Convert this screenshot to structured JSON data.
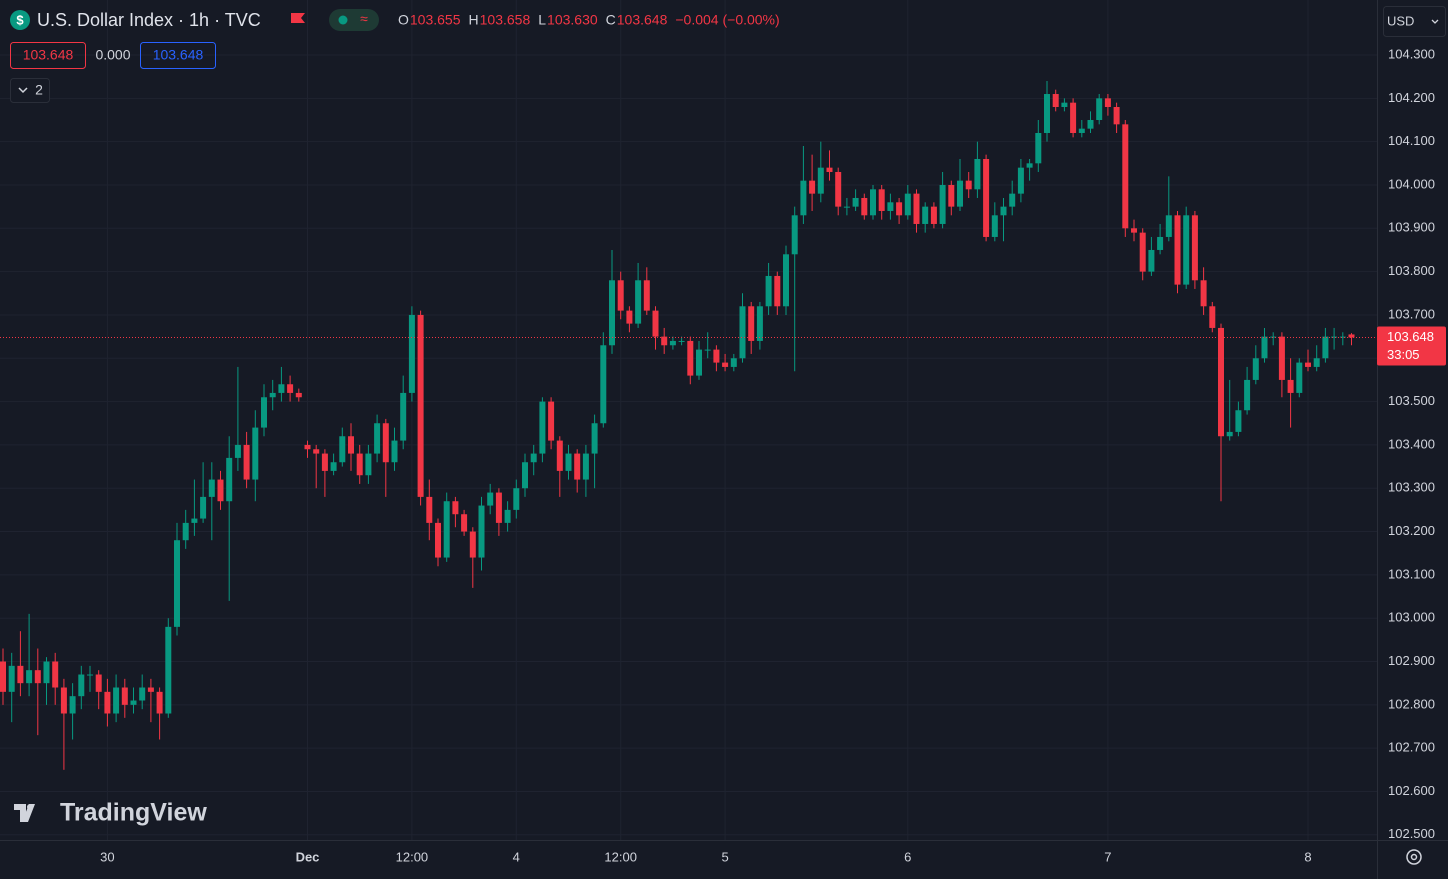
{
  "chart_data": {
    "type": "candlestick",
    "up_color": "#089981",
    "down_color": "#f23645",
    "grid": true,
    "ylim": [
      102.488,
      104.427
    ],
    "yticks": [
      {
        "value": 102.5,
        "label": "102.500"
      },
      {
        "value": 102.6,
        "label": "102.600"
      },
      {
        "value": 102.7,
        "label": "102.700"
      },
      {
        "value": 102.8,
        "label": "102.800"
      },
      {
        "value": 102.9,
        "label": "102.900"
      },
      {
        "value": 103.0,
        "label": "103.000"
      },
      {
        "value": 103.1,
        "label": "103.100"
      },
      {
        "value": 103.2,
        "label": "103.200"
      },
      {
        "value": 103.3,
        "label": "103.300"
      },
      {
        "value": 103.4,
        "label": "103.400"
      },
      {
        "value": 103.5,
        "label": "103.500"
      },
      {
        "value": 103.6,
        "label": "103.600"
      },
      {
        "value": 103.7,
        "label": "103.700"
      },
      {
        "value": 103.8,
        "label": "103.800"
      },
      {
        "value": 103.9,
        "label": "103.900"
      },
      {
        "value": 104.0,
        "label": "104.000"
      },
      {
        "value": 104.1,
        "label": "104.100"
      },
      {
        "value": 104.2,
        "label": "104.200"
      },
      {
        "value": 104.3,
        "label": "104.300"
      }
    ],
    "categories": [
      null,
      null,
      null,
      null,
      null,
      null,
      null,
      null,
      null,
      null,
      null,
      null,
      "30",
      null,
      null,
      null,
      null,
      null,
      null,
      null,
      null,
      null,
      null,
      null,
      null,
      null,
      null,
      null,
      null,
      null,
      null,
      null,
      null,
      null,
      null,
      "Dec",
      null,
      null,
      null,
      null,
      null,
      null,
      null,
      null,
      null,
      null,
      null,
      "12:00",
      null,
      null,
      null,
      null,
      null,
      null,
      null,
      null,
      null,
      null,
      null,
      "4",
      null,
      null,
      null,
      null,
      null,
      null,
      null,
      null,
      null,
      null,
      null,
      "12:00",
      null,
      null,
      null,
      null,
      null,
      null,
      null,
      null,
      null,
      null,
      null,
      "5",
      null,
      null,
      null,
      null,
      null,
      null,
      null,
      null,
      null,
      null,
      null,
      null,
      null,
      null,
      null,
      null,
      null,
      null,
      null,
      null,
      "6",
      null,
      null,
      null,
      null,
      null,
      null,
      null,
      null,
      null,
      null,
      null,
      null,
      null,
      null,
      null,
      null,
      null,
      null,
      null,
      null,
      null,
      null,
      "7",
      null,
      null,
      null,
      null,
      null,
      null,
      null,
      null,
      null,
      null,
      null,
      null,
      null,
      null,
      null,
      null,
      null,
      null,
      null,
      null,
      null,
      null,
      "8",
      null,
      null,
      null,
      null,
      null
    ],
    "ohlc": [
      [
        102.9,
        102.93,
        102.8,
        102.83
      ],
      [
        102.83,
        102.92,
        102.76,
        102.89
      ],
      [
        102.89,
        102.97,
        102.82,
        102.85
      ],
      [
        102.85,
        103.01,
        102.82,
        102.88
      ],
      [
        102.88,
        102.93,
        102.73,
        102.85
      ],
      [
        102.85,
        102.91,
        102.8,
        102.9
      ],
      [
        102.9,
        102.92,
        102.8,
        102.84
      ],
      [
        102.84,
        102.86,
        102.65,
        102.78
      ],
      [
        102.78,
        102.85,
        102.72,
        102.82
      ],
      [
        102.82,
        102.89,
        102.79,
        102.87
      ],
      [
        102.87,
        102.89,
        102.83,
        102.87
      ],
      [
        102.87,
        102.88,
        102.79,
        102.83
      ],
      [
        102.83,
        102.86,
        102.75,
        102.78
      ],
      [
        102.78,
        102.87,
        102.76,
        102.84
      ],
      [
        102.84,
        102.86,
        102.77,
        102.8
      ],
      [
        102.8,
        102.84,
        102.78,
        102.81
      ],
      [
        102.81,
        102.87,
        102.79,
        102.84
      ],
      [
        102.84,
        102.86,
        102.76,
        102.83
      ],
      [
        102.83,
        102.84,
        102.72,
        102.78
      ],
      [
        102.78,
        103.0,
        102.77,
        102.98
      ],
      [
        102.98,
        103.22,
        102.96,
        103.18
      ],
      [
        103.18,
        103.25,
        103.16,
        103.22
      ],
      [
        103.22,
        103.32,
        103.19,
        103.23
      ],
      [
        103.23,
        103.36,
        103.22,
        103.28
      ],
      [
        103.28,
        103.36,
        103.18,
        103.32
      ],
      [
        103.32,
        103.34,
        103.25,
        103.27
      ],
      [
        103.27,
        103.42,
        103.04,
        103.37
      ],
      [
        103.37,
        103.58,
        103.34,
        103.4
      ],
      [
        103.4,
        103.43,
        103.3,
        103.32
      ],
      [
        103.32,
        103.48,
        103.27,
        103.44
      ],
      [
        103.44,
        103.54,
        103.42,
        103.51
      ],
      [
        103.51,
        103.55,
        103.48,
        103.52
      ],
      [
        103.52,
        103.58,
        103.5,
        103.54
      ],
      [
        103.54,
        103.56,
        103.5,
        103.52
      ],
      [
        103.52,
        103.53,
        103.5,
        103.51
      ],
      [
        103.4,
        103.41,
        103.37,
        103.39
      ],
      [
        103.39,
        103.4,
        103.3,
        103.38
      ],
      [
        103.38,
        103.39,
        103.28,
        103.34
      ],
      [
        103.34,
        103.38,
        103.33,
        103.36
      ],
      [
        103.36,
        103.44,
        103.35,
        103.42
      ],
      [
        103.42,
        103.45,
        103.34,
        103.38
      ],
      [
        103.38,
        103.4,
        103.31,
        103.33
      ],
      [
        103.33,
        103.4,
        103.31,
        103.38
      ],
      [
        103.38,
        103.47,
        103.36,
        103.45
      ],
      [
        103.45,
        103.46,
        103.28,
        103.36
      ],
      [
        103.36,
        103.44,
        103.34,
        103.41
      ],
      [
        103.41,
        103.56,
        103.39,
        103.52
      ],
      [
        103.52,
        103.72,
        103.5,
        103.7
      ],
      [
        103.7,
        103.71,
        103.26,
        103.28
      ],
      [
        103.28,
        103.32,
        103.18,
        103.22
      ],
      [
        103.22,
        103.23,
        103.12,
        103.14
      ],
      [
        103.14,
        103.29,
        103.13,
        103.27
      ],
      [
        103.27,
        103.28,
        103.21,
        103.24
      ],
      [
        103.24,
        103.25,
        103.19,
        103.2
      ],
      [
        103.2,
        103.21,
        103.07,
        103.14
      ],
      [
        103.14,
        103.28,
        103.11,
        103.26
      ],
      [
        103.26,
        103.31,
        103.24,
        103.29
      ],
      [
        103.29,
        103.3,
        103.19,
        103.22
      ],
      [
        103.22,
        103.27,
        103.2,
        103.25
      ],
      [
        103.25,
        103.32,
        103.23,
        103.3
      ],
      [
        103.3,
        103.38,
        103.28,
        103.36
      ],
      [
        103.36,
        103.4,
        103.33,
        103.38
      ],
      [
        103.38,
        103.51,
        103.36,
        103.5
      ],
      [
        103.5,
        103.51,
        103.39,
        103.41
      ],
      [
        103.41,
        103.42,
        103.28,
        103.34
      ],
      [
        103.34,
        103.4,
        103.32,
        103.38
      ],
      [
        103.38,
        103.39,
        103.29,
        103.32
      ],
      [
        103.32,
        103.4,
        103.28,
        103.38
      ],
      [
        103.38,
        103.47,
        103.3,
        103.45
      ],
      [
        103.45,
        103.66,
        103.44,
        103.63
      ],
      [
        103.63,
        103.85,
        103.61,
        103.78
      ],
      [
        103.78,
        103.8,
        103.69,
        103.71
      ],
      [
        103.71,
        103.72,
        103.66,
        103.68
      ],
      [
        103.68,
        103.82,
        103.67,
        103.78
      ],
      [
        103.78,
        103.81,
        103.7,
        103.71
      ],
      [
        103.71,
        103.72,
        103.62,
        103.65
      ],
      [
        103.65,
        103.67,
        103.61,
        103.63
      ],
      [
        103.63,
        103.65,
        103.62,
        103.64
      ],
      [
        103.64,
        103.65,
        103.63,
        103.64
      ],
      [
        103.64,
        103.65,
        103.54,
        103.56
      ],
      [
        103.56,
        103.64,
        103.55,
        103.62
      ],
      [
        103.62,
        103.66,
        103.6,
        103.62
      ],
      [
        103.62,
        103.63,
        103.57,
        103.59
      ],
      [
        103.59,
        103.61,
        103.57,
        103.58
      ],
      [
        103.58,
        103.61,
        103.57,
        103.6
      ],
      [
        103.6,
        103.75,
        103.59,
        103.72
      ],
      [
        103.72,
        103.73,
        103.61,
        103.64
      ],
      [
        103.64,
        103.73,
        103.62,
        103.72
      ],
      [
        103.72,
        103.82,
        103.7,
        103.79
      ],
      [
        103.79,
        103.8,
        103.7,
        103.72
      ],
      [
        103.72,
        103.86,
        103.7,
        103.84
      ],
      [
        103.84,
        103.95,
        103.57,
        103.93
      ],
      [
        103.93,
        104.09,
        103.91,
        104.01
      ],
      [
        104.01,
        104.07,
        103.94,
        103.98
      ],
      [
        103.98,
        104.1,
        103.96,
        104.04
      ],
      [
        104.04,
        104.08,
        104.01,
        104.03
      ],
      [
        104.03,
        104.04,
        103.93,
        103.95
      ],
      [
        103.95,
        103.97,
        103.93,
        103.95
      ],
      [
        103.95,
        103.99,
        103.94,
        103.97
      ],
      [
        103.97,
        103.98,
        103.92,
        103.93
      ],
      [
        103.93,
        104.0,
        103.92,
        103.99
      ],
      [
        103.99,
        104.0,
        103.92,
        103.94
      ],
      [
        103.94,
        103.98,
        103.92,
        103.96
      ],
      [
        103.96,
        103.97,
        103.91,
        103.93
      ],
      [
        103.93,
        104.0,
        103.92,
        103.98
      ],
      [
        103.98,
        103.99,
        103.89,
        103.91
      ],
      [
        103.91,
        103.96,
        103.89,
        103.95
      ],
      [
        103.95,
        103.96,
        103.9,
        103.91
      ],
      [
        103.91,
        104.03,
        103.9,
        104.0
      ],
      [
        104.0,
        104.01,
        103.93,
        103.95
      ],
      [
        103.95,
        104.06,
        103.94,
        104.01
      ],
      [
        104.01,
        104.03,
        103.97,
        103.99
      ],
      [
        103.99,
        104.1,
        103.97,
        104.06
      ],
      [
        104.06,
        104.07,
        103.87,
        103.88
      ],
      [
        103.88,
        103.96,
        103.87,
        103.93
      ],
      [
        103.93,
        103.97,
        103.87,
        103.95
      ],
      [
        103.95,
        104.01,
        103.93,
        103.98
      ],
      [
        103.98,
        104.06,
        103.96,
        104.04
      ],
      [
        104.04,
        104.06,
        104.01,
        104.05
      ],
      [
        104.05,
        104.15,
        104.03,
        104.12
      ],
      [
        104.12,
        104.24,
        104.1,
        104.21
      ],
      [
        104.21,
        104.22,
        104.17,
        104.18
      ],
      [
        104.18,
        104.2,
        104.17,
        104.19
      ],
      [
        104.19,
        104.2,
        104.11,
        104.12
      ],
      [
        104.12,
        104.15,
        104.11,
        104.13
      ],
      [
        104.13,
        104.17,
        104.12,
        104.15
      ],
      [
        104.15,
        104.21,
        104.14,
        104.2
      ],
      [
        104.2,
        104.21,
        104.16,
        104.18
      ],
      [
        104.18,
        104.19,
        104.12,
        104.14
      ],
      [
        104.14,
        104.15,
        103.88,
        103.9
      ],
      [
        103.9,
        103.92,
        103.87,
        103.89
      ],
      [
        103.89,
        103.9,
        103.78,
        103.8
      ],
      [
        103.8,
        103.88,
        103.79,
        103.85
      ],
      [
        103.85,
        103.91,
        103.84,
        103.88
      ],
      [
        103.88,
        104.02,
        103.87,
        103.93
      ],
      [
        103.93,
        103.94,
        103.75,
        103.77
      ],
      [
        103.77,
        103.95,
        103.76,
        103.93
      ],
      [
        103.93,
        103.94,
        103.76,
        103.78
      ],
      [
        103.78,
        103.81,
        103.7,
        103.72
      ],
      [
        103.72,
        103.73,
        103.66,
        103.67
      ],
      [
        103.67,
        103.68,
        103.27,
        103.42
      ],
      [
        103.42,
        103.55,
        103.41,
        103.43
      ],
      [
        103.43,
        103.5,
        103.42,
        103.48
      ],
      [
        103.48,
        103.58,
        103.47,
        103.55
      ],
      [
        103.55,
        103.63,
        103.54,
        103.6
      ],
      [
        103.6,
        103.67,
        103.59,
        103.65
      ],
      [
        103.65,
        103.66,
        103.63,
        103.65
      ],
      [
        103.65,
        103.66,
        103.51,
        103.55
      ],
      [
        103.55,
        103.6,
        103.44,
        103.52
      ],
      [
        103.52,
        103.6,
        103.51,
        103.59
      ],
      [
        103.59,
        103.62,
        103.57,
        103.58
      ],
      [
        103.58,
        103.63,
        103.57,
        103.6
      ],
      [
        103.6,
        103.67,
        103.59,
        103.65
      ],
      [
        103.65,
        103.67,
        103.62,
        103.65
      ],
      [
        103.65,
        103.66,
        103.63,
        103.65
      ],
      [
        103.655,
        103.658,
        103.63,
        103.648
      ]
    ]
  },
  "ui": {
    "title": "U.S. Dollar Index · 1h · TVC",
    "ohlc": [
      {
        "label": "O",
        "value": "103.655"
      },
      {
        "label": "H",
        "value": "103.658"
      },
      {
        "label": "L",
        "value": "103.630"
      },
      {
        "label": "C",
        "value": "103.648"
      }
    ],
    "change": "−0.004 (−0.00%)",
    "bid": "103.648",
    "spread": "0.000",
    "ask": "103.648",
    "indicators_count": "2",
    "currency": "USD",
    "countdown": "33:05",
    "logo": "TradingView"
  }
}
